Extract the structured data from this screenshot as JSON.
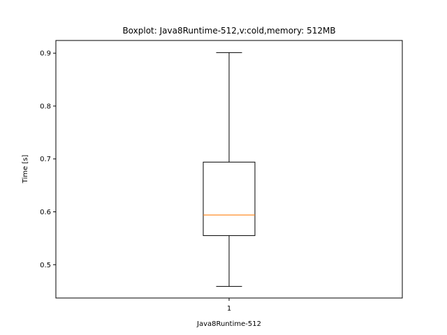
{
  "chart_data": {
    "type": "boxplot",
    "title": "Boxplot: Java8Runtime-512,v:cold,memory: 512MB",
    "xlabel": "Java8Runtime-512",
    "ylabel": "Time [s]",
    "ylim": [
      0.437,
      0.924
    ],
    "yticks": [
      "0.5",
      "0.6",
      "0.7",
      "0.8",
      "0.9"
    ],
    "categories": [
      "1"
    ],
    "boxes": [
      {
        "category": "1",
        "whisker_low": 0.459,
        "q1": 0.555,
        "median": 0.594,
        "q3": 0.694,
        "whisker_high": 0.901
      }
    ],
    "colors": {
      "box": "#000000",
      "median": "#ff7f0e"
    },
    "grid": false,
    "legend": "none"
  }
}
